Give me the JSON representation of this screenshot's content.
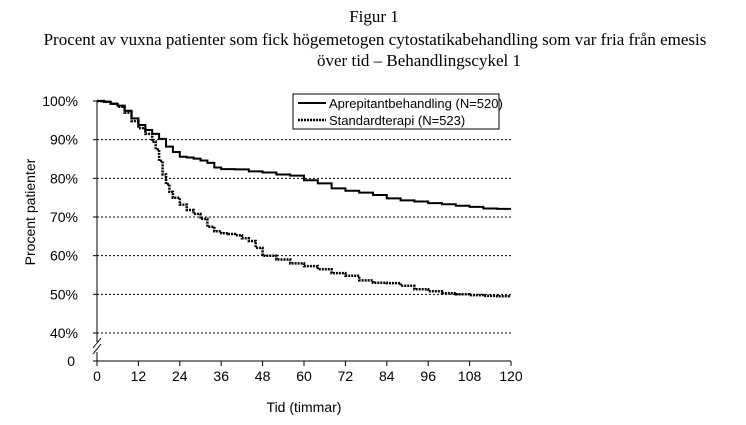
{
  "figure": {
    "title_line1": "Figur 1",
    "title_line2": "Procent av vuxna patienter som fick högemetogen cytostatikabehandling som var fria från emesis",
    "title_line3": "över tid – Behandlingscykel 1"
  },
  "chart_data": {
    "type": "line",
    "xlabel": "Tid (timmar)",
    "ylabel": "Procent patienter",
    "x_ticks": [
      0,
      12,
      24,
      36,
      48,
      60,
      72,
      84,
      96,
      108,
      120
    ],
    "y_ticks": [
      "100%",
      "90%",
      "80%",
      "70%",
      "60%",
      "50%",
      "40%"
    ],
    "y_tick_values": [
      100,
      90,
      80,
      70,
      60,
      50,
      40
    ],
    "y_zero_label": "0",
    "xlim": [
      0,
      120
    ],
    "ylim": [
      40,
      100
    ],
    "y_axis_break": true,
    "grid": "horizontal-dotted",
    "legend_position": "top-right",
    "series": [
      {
        "name": "Aprepitantbehandling (N=520)",
        "style": "solid",
        "color": "#000000",
        "x": [
          0,
          2,
          4,
          6,
          8,
          10,
          12,
          14,
          16,
          18,
          20,
          22,
          24,
          26,
          28,
          30,
          32,
          34,
          36,
          40,
          44,
          48,
          52,
          56,
          60,
          64,
          68,
          72,
          76,
          80,
          84,
          88,
          92,
          96,
          100,
          104,
          108,
          112,
          116,
          120
        ],
        "y": [
          100,
          99.8,
          99.3,
          98.8,
          97.5,
          95.5,
          93.8,
          92.5,
          91.5,
          90.2,
          88.2,
          86.8,
          85.6,
          85.4,
          85.1,
          84.6,
          84.0,
          82.8,
          82.4,
          82.3,
          81.8,
          81.5,
          81.0,
          80.7,
          79.5,
          78.7,
          77.4,
          76.8,
          76.3,
          75.7,
          74.8,
          74.3,
          74.0,
          73.6,
          73.3,
          72.9,
          72.6,
          72.2,
          72.1,
          72.1
        ]
      },
      {
        "name": "Standardterapi (N=523)",
        "style": "dashed",
        "color": "#000000",
        "x": [
          0,
          2,
          4,
          6,
          8,
          10,
          12,
          14,
          16,
          17,
          18,
          19,
          20,
          21,
          22,
          24,
          26,
          28,
          30,
          32,
          34,
          36,
          38,
          40,
          42,
          44,
          46,
          48,
          52,
          56,
          60,
          64,
          68,
          72,
          76,
          80,
          84,
          88,
          92,
          96,
          100,
          104,
          108,
          112,
          116,
          120
        ],
        "y": [
          100,
          99.8,
          99.3,
          98.5,
          97.0,
          94.8,
          93.0,
          91.5,
          89.5,
          87.5,
          84.5,
          81.0,
          78.5,
          76.5,
          75.0,
          73.2,
          71.8,
          70.8,
          69.5,
          67.5,
          66.3,
          65.8,
          65.6,
          65.3,
          64.5,
          63.8,
          62.0,
          60.0,
          59.0,
          58.0,
          57.3,
          56.5,
          55.5,
          54.8,
          53.6,
          53.0,
          52.9,
          52.2,
          51.3,
          50.8,
          50.3,
          50.0,
          49.8,
          49.6,
          49.5,
          49.5
        ]
      }
    ]
  }
}
